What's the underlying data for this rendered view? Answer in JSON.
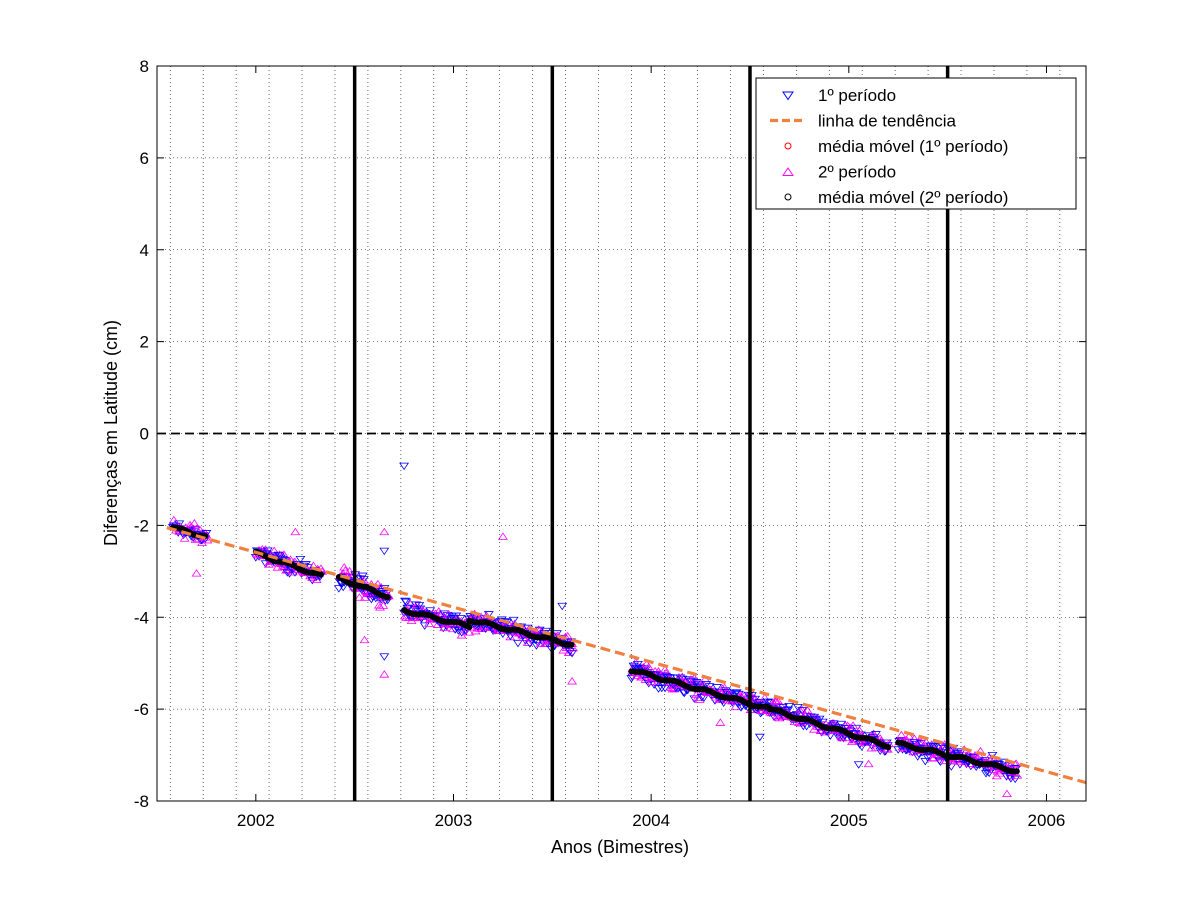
{
  "chart_data": {
    "type": "scatter",
    "title": "",
    "xlabel": "Anos (Bimestres)",
    "ylabel": "Diferenças em Latitude (cm)",
    "xlim": [
      2001.5,
      2006.2
    ],
    "ylim": [
      -8,
      8
    ],
    "x_ticks": [
      2002,
      2003,
      2004,
      2005,
      2006
    ],
    "x_minor_grid_step": 0.1667,
    "y_ticks": [
      -8,
      -6,
      -4,
      -2,
      0,
      2,
      4,
      6,
      8
    ],
    "grid": "dotted",
    "legend_position": "top-right",
    "colors": {
      "periodo1": "#0000ff",
      "tendencia": "#f08040",
      "media1": "#ff0000",
      "periodo2": "#ff00ff",
      "media2": "#000000",
      "zero_line": "#000000",
      "breaks": "#000000"
    },
    "zero_line": {
      "y": 0,
      "style": "dashed"
    },
    "vertical_break_lines": [
      2002.5,
      2003.5,
      2004.5,
      2005.5
    ],
    "trend_line": {
      "x": [
        2001.55,
        2006.2
      ],
      "y": [
        -2.05,
        -7.6
      ]
    },
    "segments": [
      {
        "x_start": 2001.58,
        "x_end": 2001.75,
        "mean_start": -2.05,
        "mean_end": -2.25,
        "spread": 0.3
      },
      {
        "x_start": 2002.0,
        "x_end": 2002.33,
        "mean_start": -2.6,
        "mean_end": -3.1,
        "spread": 0.25
      },
      {
        "x_start": 2002.42,
        "x_end": 2002.67,
        "mean_start": -3.15,
        "mean_end": -3.55,
        "spread": 0.35
      },
      {
        "x_start": 2002.75,
        "x_end": 2003.08,
        "mean_start": -3.85,
        "mean_end": -4.2,
        "spread": 0.3
      },
      {
        "x_start": 2003.08,
        "x_end": 2003.6,
        "mean_start": -4.05,
        "mean_end": -4.6,
        "spread": 0.3
      },
      {
        "x_start": 2003.9,
        "x_end": 2004.6,
        "mean_start": -5.15,
        "mean_end": -6.0,
        "spread": 0.3
      },
      {
        "x_start": 2004.6,
        "x_end": 2005.2,
        "mean_start": -6.0,
        "mean_end": -6.8,
        "spread": 0.3
      },
      {
        "x_start": 2005.25,
        "x_end": 2005.85,
        "mean_start": -6.75,
        "mean_end": -7.35,
        "spread": 0.3
      }
    ],
    "outliers": [
      {
        "series": "1º período",
        "x": 2002.75,
        "y": -0.7
      },
      {
        "series": "1º período",
        "x": 2002.65,
        "y": -4.85
      },
      {
        "series": "1º período",
        "x": 2002.65,
        "y": -2.55
      },
      {
        "series": "2º período",
        "x": 2002.65,
        "y": -2.15
      },
      {
        "series": "2º período",
        "x": 2002.65,
        "y": -5.25
      },
      {
        "series": "2º período",
        "x": 2002.55,
        "y": -4.5
      },
      {
        "series": "2º período",
        "x": 2003.25,
        "y": -2.25
      },
      {
        "series": "2º período",
        "x": 2002.2,
        "y": -2.15
      },
      {
        "series": "1º período",
        "x": 2004.55,
        "y": -6.6
      },
      {
        "series": "1º período",
        "x": 2005.05,
        "y": -7.2
      },
      {
        "series": "2º período",
        "x": 2005.1,
        "y": -7.2
      },
      {
        "series": "2º período",
        "x": 2004.35,
        "y": -6.3
      },
      {
        "series": "2º período",
        "x": 2003.6,
        "y": -5.4
      },
      {
        "series": "1º período",
        "x": 2003.55,
        "y": -3.75
      },
      {
        "series": "2º período",
        "x": 2001.7,
        "y": -3.05
      },
      {
        "series": "2º período",
        "x": 2005.8,
        "y": -7.85
      }
    ],
    "legend": [
      {
        "label": "1º período",
        "symbol": "triangle-down",
        "color": "#0000ff"
      },
      {
        "label": "linha de tendência",
        "symbol": "dashed-line",
        "color": "#f08040"
      },
      {
        "label": "média móvel (1º período)",
        "symbol": "circle",
        "color": "#ff0000"
      },
      {
        "label": "2º período",
        "symbol": "triangle-up",
        "color": "#ff00ff"
      },
      {
        "label": "média móvel (2º período)",
        "symbol": "circle",
        "color": "#000000"
      }
    ]
  }
}
